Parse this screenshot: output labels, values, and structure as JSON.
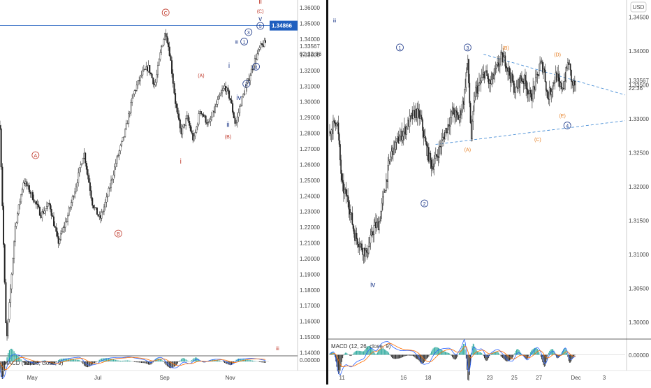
{
  "chart_data": [
    {
      "type": "candlestick",
      "panel": "left",
      "x_ticks": [
        "May",
        "Jul",
        "Sep",
        "Nov"
      ],
      "y_ticks": [
        "1.36000",
        "1.35000",
        "1.34000",
        "1.33000",
        "1.32000",
        "1.31000",
        "1.30000",
        "1.29000",
        "1.28000",
        "1.27000",
        "1.26000",
        "1.25000",
        "1.24000",
        "1.23000",
        "1.22000",
        "1.21000",
        "1.20000",
        "1.19000",
        "1.18000",
        "1.17000",
        "1.16000",
        "1.15000",
        "1.14000"
      ],
      "ylim": [
        1.138,
        1.365
      ],
      "x_range_days": [
        0,
        250
      ],
      "x_tick_days": [
        30,
        91,
        153,
        214
      ],
      "horizontal_line": {
        "value": 1.34866,
        "label": "1.34866",
        "color": "#1f5fbf"
      },
      "last_price": {
        "value": 1.33567,
        "label": "1.33567"
      },
      "countdown": "02:22:36",
      "close_path": [
        [
          0,
          1.285
        ],
        [
          6,
          1.145
        ],
        [
          14,
          1.22
        ],
        [
          22,
          1.25
        ],
        [
          30,
          1.24
        ],
        [
          38,
          1.228
        ],
        [
          46,
          1.235
        ],
        [
          54,
          1.21
        ],
        [
          62,
          1.225
        ],
        [
          70,
          1.245
        ],
        [
          78,
          1.268
        ],
        [
          86,
          1.235
        ],
        [
          93,
          1.225
        ],
        [
          100,
          1.24
        ],
        [
          108,
          1.262
        ],
        [
          116,
          1.28
        ],
        [
          124,
          1.305
        ],
        [
          132,
          1.318
        ],
        [
          138,
          1.322
        ],
        [
          144,
          1.31
        ],
        [
          150,
          1.335
        ],
        [
          154,
          1.345
        ],
        [
          158,
          1.33
        ],
        [
          163,
          1.3
        ],
        [
          168,
          1.28
        ],
        [
          174,
          1.29
        ],
        [
          180,
          1.275
        ],
        [
          186,
          1.295
        ],
        [
          194,
          1.285
        ],
        [
          202,
          1.3
        ],
        [
          209,
          1.31
        ],
        [
          214,
          1.302
        ],
        [
          219,
          1.285
        ],
        [
          224,
          1.3
        ],
        [
          230,
          1.312
        ],
        [
          236,
          1.325
        ],
        [
          242,
          1.335
        ],
        [
          247,
          1.338
        ]
      ],
      "annotations": [
        {
          "text": "A",
          "day": 33,
          "price": 1.266,
          "color": "#c0392b",
          "circled": true
        },
        {
          "text": "B",
          "day": 110,
          "price": 1.216,
          "color": "#c0392b",
          "circled": true
        },
        {
          "text": "C",
          "day": 154,
          "price": 1.357,
          "color": "#c0392b",
          "circled": true
        },
        {
          "text": "i",
          "day": 168,
          "price": 1.262,
          "color": "#c0392b",
          "circled": false
        },
        {
          "text": "(A)",
          "day": 187,
          "price": 1.317,
          "color": "#c0392b",
          "circled": false
        },
        {
          "text": "(B)",
          "day": 212,
          "price": 1.278,
          "color": "#c0392b",
          "circled": false
        },
        {
          "text": "ii",
          "day": 242,
          "price": 1.364,
          "color": "#c0392b",
          "circled": false
        },
        {
          "text": "(C)",
          "day": 242,
          "price": 1.358,
          "color": "#c0392b",
          "circled": false
        },
        {
          "text": "v",
          "day": 242,
          "price": 1.353,
          "color": "#1f3a8a",
          "circled": false
        },
        {
          "text": "5",
          "day": 242,
          "price": 1.3485,
          "color": "#1f3a8a",
          "circled": true
        },
        {
          "text": "3",
          "day": 231,
          "price": 1.3445,
          "color": "#1f3a8a",
          "circled": true
        },
        {
          "text": "iii",
          "day": 220,
          "price": 1.3385,
          "color": "#1f3a8a",
          "circled": false
        },
        {
          "text": "1",
          "day": 227,
          "price": 1.3385,
          "color": "#1f3a8a",
          "circled": true
        },
        {
          "text": "i",
          "day": 213,
          "price": 1.323,
          "color": "#1f3a8a",
          "circled": false
        },
        {
          "text": "4",
          "day": 238,
          "price": 1.3225,
          "color": "#1f3a8a",
          "circled": true
        },
        {
          "text": "2",
          "day": 229,
          "price": 1.3115,
          "color": "#1f3a8a",
          "circled": true
        },
        {
          "text": "iv",
          "day": 222,
          "price": 1.3025,
          "color": "#1f3a8a",
          "circled": false
        },
        {
          "text": "ii",
          "day": 212,
          "price": 1.2855,
          "color": "#1f3a8a",
          "circled": false
        },
        {
          "text": "iii",
          "day": 258,
          "price": 1.143,
          "color": "#c0392b",
          "circled": false
        }
      ],
      "macd": {
        "label": "MACD (12, 26, close, 9)",
        "zero_label": "0.00000"
      }
    },
    {
      "type": "candlestick",
      "panel": "right",
      "currency": "USD",
      "x_ticks": [
        "11",
        "16",
        "18",
        "23",
        "25",
        "27",
        "Dec",
        "3"
      ],
      "y_ticks": [
        "1.34500",
        "1.34000",
        "1.33500",
        "1.33000",
        "1.32500",
        "1.32000",
        "1.31500",
        "1.31000",
        "1.30500",
        "1.30000"
      ],
      "ylim": [
        1.2975,
        1.3475
      ],
      "x_range_days": [
        10,
        34
      ],
      "x_tick_days": [
        11,
        16,
        18,
        23,
        25,
        27,
        30,
        32.3
      ],
      "last_price": {
        "value": 1.33567,
        "label": "1.33567"
      },
      "countdown": "22:36",
      "close_path": [
        [
          10,
          1.328
        ],
        [
          10.6,
          1.33
        ],
        [
          11,
          1.32
        ],
        [
          11.5,
          1.318
        ],
        [
          12,
          1.313
        ],
        [
          12.6,
          1.311
        ],
        [
          13,
          1.31
        ],
        [
          13.6,
          1.314
        ],
        [
          14,
          1.3145
        ],
        [
          14.6,
          1.321
        ],
        [
          15,
          1.325
        ],
        [
          15.6,
          1.327
        ],
        [
          16,
          1.328
        ],
        [
          16.6,
          1.33
        ],
        [
          17,
          1.331
        ],
        [
          17.4,
          1.33
        ],
        [
          17.8,
          1.326
        ],
        [
          18.3,
          1.323
        ],
        [
          18.6,
          1.324
        ],
        [
          19,
          1.326
        ],
        [
          19.6,
          1.329
        ],
        [
          20,
          1.331
        ],
        [
          20.5,
          1.33
        ],
        [
          20.9,
          1.333
        ],
        [
          21.2,
          1.339
        ],
        [
          21.5,
          1.327
        ],
        [
          21.8,
          1.334
        ],
        [
          22.2,
          1.335
        ],
        [
          22.6,
          1.337
        ],
        [
          23,
          1.335
        ],
        [
          23.5,
          1.337
        ],
        [
          23.9,
          1.339
        ],
        [
          24.3,
          1.3385
        ],
        [
          24.7,
          1.336
        ],
        [
          25.1,
          1.334
        ],
        [
          25.5,
          1.336
        ],
        [
          25.9,
          1.3355
        ],
        [
          26.3,
          1.333
        ],
        [
          26.7,
          1.335
        ],
        [
          27.1,
          1.338
        ],
        [
          27.4,
          1.3375
        ],
        [
          27.7,
          1.333
        ],
        [
          28.1,
          1.335
        ],
        [
          28.4,
          1.3365
        ],
        [
          28.7,
          1.3345
        ],
        [
          29,
          1.335
        ],
        [
          29.4,
          1.3385
        ],
        [
          29.7,
          1.335
        ],
        [
          30,
          1.335
        ]
      ],
      "triangle_lines": [
        {
          "from": [
            22.5,
            1.3395
          ],
          "to": [
            34,
            1.3335
          ],
          "color": "#4a8fd6"
        },
        {
          "from": [
            18.6,
            1.3262
          ],
          "to": [
            34,
            1.3297
          ],
          "color": "#4a8fd6"
        }
      ],
      "annotations": [
        {
          "text": "iii",
          "day": 10.4,
          "price": 1.3445,
          "color": "#1f3a8a",
          "circled": false
        },
        {
          "text": "1",
          "day": 15.7,
          "price": 1.3405,
          "color": "#1f3a8a",
          "circled": true
        },
        {
          "text": "3",
          "day": 21.2,
          "price": 1.3405,
          "color": "#1f3a8a",
          "circled": true
        },
        {
          "text": "2",
          "day": 17.7,
          "price": 1.3175,
          "color": "#1f3a8a",
          "circled": true
        },
        {
          "text": "iv",
          "day": 13.5,
          "price": 1.3055,
          "color": "#1f3a8a",
          "circled": false
        },
        {
          "text": "(A)",
          "day": 21.2,
          "price": 1.3255,
          "color": "#e67e22",
          "circled": false
        },
        {
          "text": "(B)",
          "day": 24.3,
          "price": 1.3405,
          "color": "#e67e22",
          "circled": false
        },
        {
          "text": "(C)",
          "day": 26.9,
          "price": 1.327,
          "color": "#e67e22",
          "circled": false
        },
        {
          "text": "(D)",
          "day": 28.5,
          "price": 1.3395,
          "color": "#e67e22",
          "circled": false
        },
        {
          "text": "(E)",
          "day": 28.9,
          "price": 1.3305,
          "color": "#e67e22",
          "circled": false
        },
        {
          "text": "4",
          "day": 29.3,
          "price": 1.329,
          "color": "#1f3a8a",
          "circled": true
        }
      ],
      "macd": {
        "label": "MACD (12, 26, close, 9)",
        "zero_label": "0.00000"
      }
    }
  ]
}
